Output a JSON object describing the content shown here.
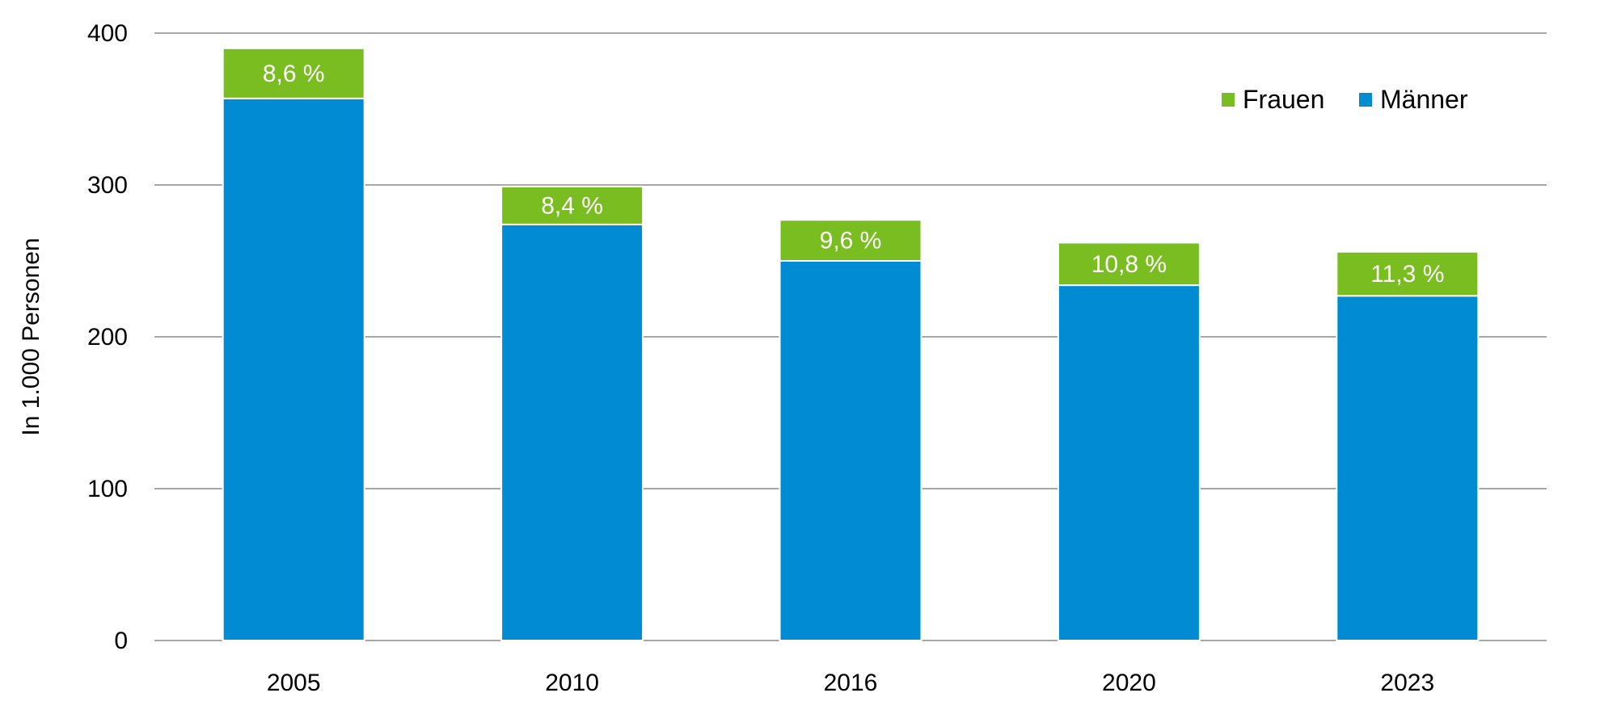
{
  "chart_data": {
    "type": "bar",
    "stacked": true,
    "categories": [
      "2005",
      "2010",
      "2016",
      "2020",
      "2023"
    ],
    "series": [
      {
        "name": "Männer",
        "color": "#008BD2",
        "values": [
          357,
          274,
          250,
          234,
          227
        ]
      },
      {
        "name": "Frauen",
        "color": "#7ABD21",
        "values": [
          33,
          25,
          27,
          28,
          29
        ]
      }
    ],
    "data_labels": [
      "8,6 %",
      "8,4 %",
      "9,6 %",
      "10,8 %",
      "11,3 %"
    ],
    "ylabel": "In 1.000 Personen",
    "xlabel": "",
    "ylim": [
      0,
      400
    ],
    "yticks": [
      0,
      100,
      200,
      300,
      400
    ],
    "grid": true,
    "legend_position": "top-right",
    "legend_order": [
      "Frauen",
      "Männer"
    ]
  }
}
